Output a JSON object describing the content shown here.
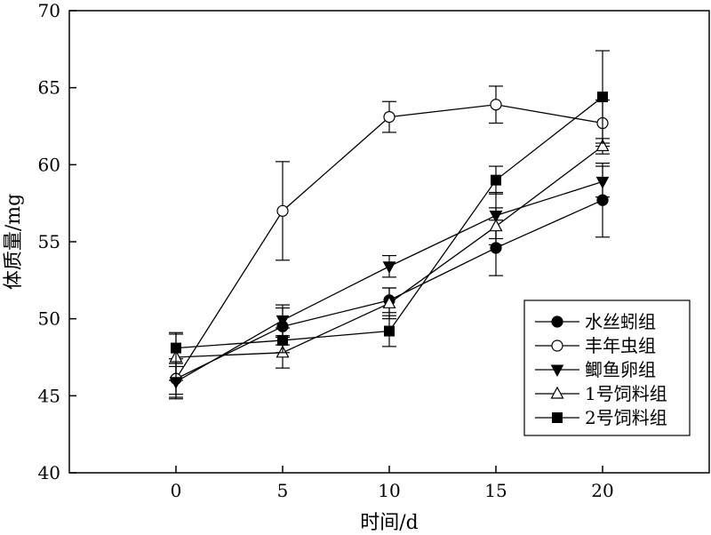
{
  "chart_data": {
    "type": "line",
    "title": "",
    "xlabel": "时间/d",
    "ylabel": "体质量/mg",
    "xlim": [
      -5,
      25
    ],
    "ylim": [
      40,
      70
    ],
    "xticks": [
      0,
      5,
      10,
      15,
      20
    ],
    "yticks": [
      40,
      45,
      50,
      55,
      60,
      65,
      70
    ],
    "legend_position": "center-right",
    "grid": false,
    "series": [
      {
        "name": "水丝蚓组",
        "marker": "circle-filled",
        "x": [
          0,
          5,
          10,
          15,
          20
        ],
        "y": [
          46.1,
          49.5,
          51.2,
          54.6,
          57.7
        ],
        "err": [
          1.0,
          1.2,
          0.8,
          1.8,
          2.4
        ]
      },
      {
        "name": "丰年虫组",
        "marker": "circle-open",
        "x": [
          0,
          5,
          10,
          15,
          20
        ],
        "y": [
          46.1,
          57.0,
          63.1,
          63.9,
          62.7
        ],
        "err": [
          1.3,
          3.2,
          1.0,
          1.2,
          1.5
        ]
      },
      {
        "name": "鲫鱼卵组",
        "marker": "triangle-down-filled",
        "x": [
          0,
          5,
          10,
          15,
          20
        ],
        "y": [
          45.9,
          49.9,
          53.4,
          56.7,
          58.9
        ],
        "err": [
          1.0,
          1.0,
          0.7,
          1.5,
          1.0
        ]
      },
      {
        "name": "1号饲料组",
        "marker": "triangle-up-open",
        "x": [
          0,
          5,
          10,
          15,
          20
        ],
        "y": [
          47.5,
          47.8,
          51.0,
          56.0,
          61.2
        ],
        "err": [
          1.5,
          1.0,
          1.0,
          1.2,
          0.5
        ]
      },
      {
        "name": "2号饲料组",
        "marker": "square-filled",
        "x": [
          0,
          5,
          10,
          15,
          20
        ],
        "y": [
          48.1,
          48.6,
          49.2,
          59.0,
          64.4
        ],
        "err": [
          1.0,
          0.8,
          1.0,
          0.9,
          3.0
        ]
      }
    ]
  }
}
